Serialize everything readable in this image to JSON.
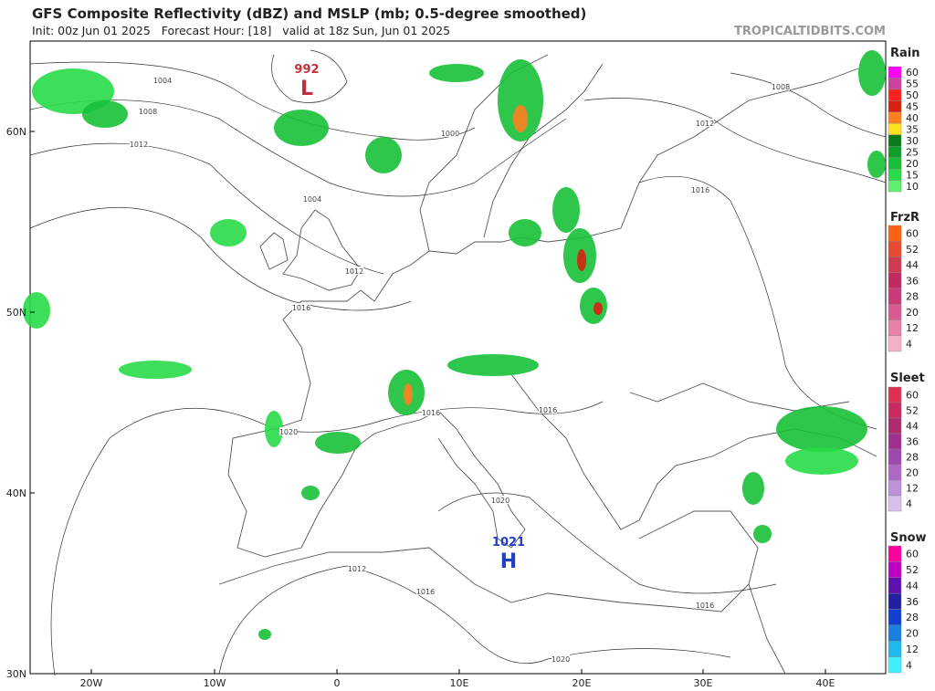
{
  "header": {
    "title": "GFS Composite Reflectivity (dBZ) and MSLP (mb; 0.5-degree smoothed)",
    "subtitle": "Init: 00z Jun 01 2025   Forecast Hour: [18]   valid at 18z Sun, Jun 01 2025",
    "watermark": "TROPICALTIDBITS.COM"
  },
  "map": {
    "lat_labels": [
      "60N",
      "50N",
      "40N",
      "30N"
    ],
    "lon_labels": [
      "20W",
      "10W",
      "0",
      "10E",
      "20E",
      "30E",
      "40E"
    ],
    "pressure_centers": [
      {
        "value": "992",
        "symbol": "L",
        "color": "#c0303a"
      },
      {
        "value": "1021",
        "symbol": "H",
        "color": "#1f3fc8"
      }
    ],
    "isobar_labels": [
      "1004",
      "1008",
      "1012",
      "1000",
      "1004",
      "1012",
      "1016",
      "1016",
      "1020",
      "1016",
      "1020",
      "1012",
      "1016",
      "1016",
      "1020",
      "1008",
      "1012",
      "1016"
    ]
  },
  "legends": [
    {
      "title": "Rain",
      "ticks": [
        "60",
        "55",
        "50",
        "45",
        "40",
        "35",
        "30",
        "25",
        "20",
        "15",
        "10"
      ],
      "colors": [
        "#ff00ff",
        "#d040a0",
        "#ff2020",
        "#d82010",
        "#ff8020",
        "#ffe020",
        "#0a7a1a",
        "#10a02a",
        "#18c038",
        "#28dc48",
        "#60f070"
      ]
    },
    {
      "title": "FrzR",
      "ticks": [
        "60",
        "52",
        "44",
        "36",
        "28",
        "20",
        "12",
        "4"
      ],
      "colors": [
        "#ff6010",
        "#e84a30",
        "#d03a50",
        "#c02a60",
        "#c83a78",
        "#d85a90",
        "#e880a8",
        "#f4b0c8"
      ]
    },
    {
      "title": "Sleet",
      "ticks": [
        "60",
        "52",
        "44",
        "36",
        "28",
        "20",
        "12",
        "4"
      ],
      "colors": [
        "#e03050",
        "#c82a60",
        "#b02a70",
        "#a03090",
        "#a048b0",
        "#b068c8",
        "#c090d8",
        "#d8c0ec"
      ]
    },
    {
      "title": "Snow",
      "ticks": [
        "60",
        "52",
        "44",
        "36",
        "28",
        "20",
        "12",
        "4"
      ],
      "colors": [
        "#ff00a0",
        "#c000c0",
        "#6010b0",
        "#2020a0",
        "#1040d0",
        "#1a80e0",
        "#20b8f0",
        "#40f0ff"
      ]
    }
  ]
}
